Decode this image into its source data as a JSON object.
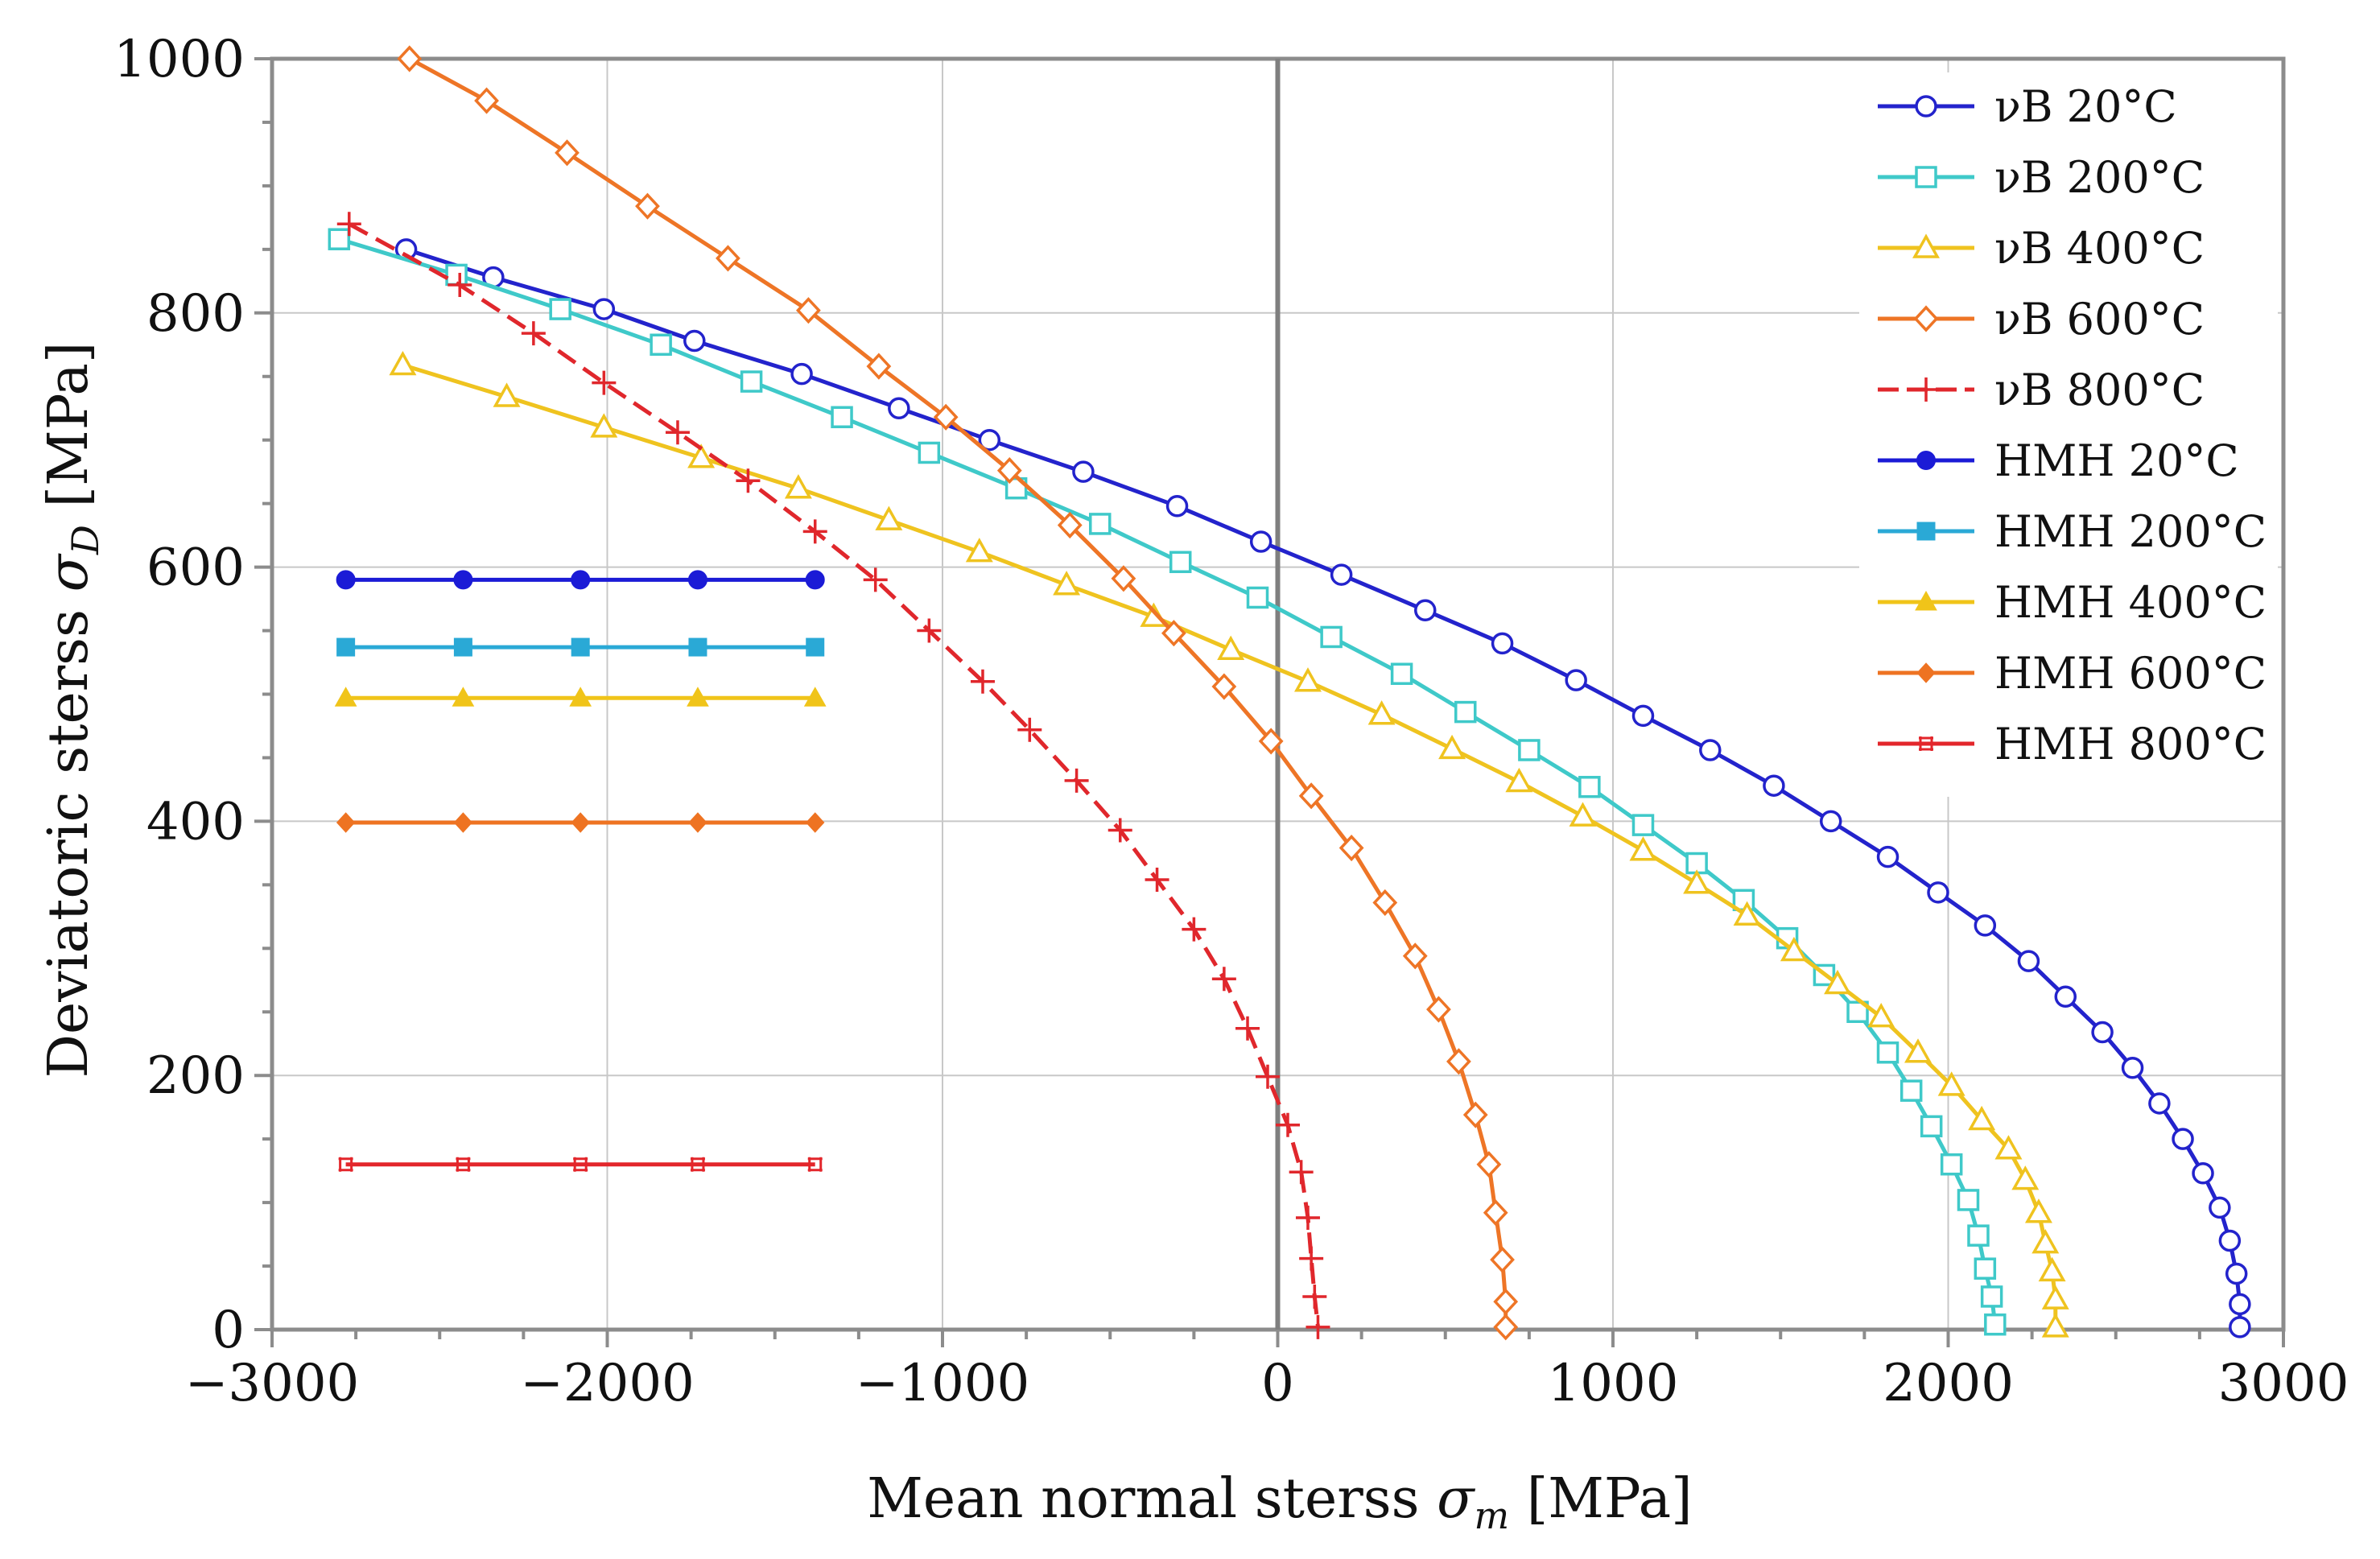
{
  "chart_data": {
    "type": "line",
    "title": "",
    "xlabel": {
      "prefix": "Mean normal sterss ",
      "symbol": "σ",
      "subscript": "m",
      "suffix": " [MPa]"
    },
    "ylabel": {
      "prefix": "Deviatoric sterss ",
      "symbol": "σ",
      "subscript": "D",
      "suffix": " [MPa]"
    },
    "xlim": [
      -3000,
      3000
    ],
    "ylim": [
      0,
      1000
    ],
    "x_ticks": [
      -3000,
      -2000,
      -1000,
      0,
      1000,
      2000,
      3000
    ],
    "x_tick_labels": [
      "−3000",
      "−2000",
      "−1000",
      "0",
      "1000",
      "2000",
      "3000"
    ],
    "y_ticks": [
      0,
      200,
      400,
      600,
      800,
      1000
    ],
    "y_tick_labels": [
      "0",
      "200",
      "400",
      "600",
      "800",
      "1000"
    ],
    "grid": true,
    "legend_position": "top-right",
    "series": [
      {
        "name": "νB 20°C",
        "color": "#2323cc",
        "marker": "open-circle",
        "dashed": false,
        "points": [
          [
            -2600,
            850
          ],
          [
            -2340,
            828
          ],
          [
            -2010,
            803
          ],
          [
            -1740,
            778
          ],
          [
            -1420,
            752
          ],
          [
            -1130,
            725
          ],
          [
            -860,
            700
          ],
          [
            -580,
            675
          ],
          [
            -300,
            648
          ],
          [
            -50,
            620
          ],
          [
            190,
            594
          ],
          [
            440,
            566
          ],
          [
            670,
            540
          ],
          [
            890,
            511
          ],
          [
            1090,
            483
          ],
          [
            1290,
            456
          ],
          [
            1480,
            428
          ],
          [
            1650,
            400
          ],
          [
            1820,
            372
          ],
          [
            1970,
            344
          ],
          [
            2110,
            318
          ],
          [
            2240,
            290
          ],
          [
            2350,
            262
          ],
          [
            2460,
            234
          ],
          [
            2550,
            206
          ],
          [
            2630,
            178
          ],
          [
            2700,
            150
          ],
          [
            2760,
            123
          ],
          [
            2810,
            96
          ],
          [
            2840,
            70
          ],
          [
            2860,
            44
          ],
          [
            2870,
            20
          ],
          [
            2870,
            2
          ]
        ]
      },
      {
        "name": "νB 200°C",
        "color": "#3fc9c9",
        "marker": "open-square",
        "dashed": false,
        "points": [
          [
            -2800,
            858
          ],
          [
            -2450,
            830
          ],
          [
            -2140,
            803
          ],
          [
            -1840,
            775
          ],
          [
            -1570,
            746
          ],
          [
            -1300,
            718
          ],
          [
            -1040,
            690
          ],
          [
            -780,
            662
          ],
          [
            -530,
            634
          ],
          [
            -290,
            604
          ],
          [
            -60,
            576
          ],
          [
            160,
            545
          ],
          [
            370,
            516
          ],
          [
            560,
            486
          ],
          [
            750,
            456
          ],
          [
            930,
            427
          ],
          [
            1090,
            397
          ],
          [
            1250,
            367
          ],
          [
            1390,
            338
          ],
          [
            1520,
            308
          ],
          [
            1630,
            279
          ],
          [
            1730,
            250
          ],
          [
            1820,
            218
          ],
          [
            1890,
            188
          ],
          [
            1950,
            160
          ],
          [
            2010,
            130
          ],
          [
            2060,
            102
          ],
          [
            2090,
            74
          ],
          [
            2110,
            48
          ],
          [
            2130,
            26
          ],
          [
            2140,
            4
          ]
        ]
      },
      {
        "name": "νB 400°C",
        "color": "#efc31f",
        "marker": "open-triangle",
        "dashed": false,
        "points": [
          [
            -2610,
            759
          ],
          [
            -2300,
            734
          ],
          [
            -2010,
            710
          ],
          [
            -1720,
            686
          ],
          [
            -1430,
            662
          ],
          [
            -1160,
            637
          ],
          [
            -890,
            612
          ],
          [
            -630,
            586
          ],
          [
            -370,
            561
          ],
          [
            -140,
            535
          ],
          [
            90,
            510
          ],
          [
            310,
            484
          ],
          [
            520,
            457
          ],
          [
            720,
            431
          ],
          [
            910,
            404
          ],
          [
            1090,
            377
          ],
          [
            1250,
            351
          ],
          [
            1400,
            326
          ],
          [
            1540,
            298
          ],
          [
            1670,
            272
          ],
          [
            1800,
            246
          ],
          [
            1910,
            218
          ],
          [
            2010,
            192
          ],
          [
            2100,
            165
          ],
          [
            2180,
            142
          ],
          [
            2230,
            118
          ],
          [
            2270,
            92
          ],
          [
            2290,
            68
          ],
          [
            2310,
            46
          ],
          [
            2320,
            24
          ],
          [
            2320,
            2
          ]
        ]
      },
      {
        "name": "νB 600°C",
        "color": "#ee7526",
        "marker": "open-diamond",
        "dashed": false,
        "points": [
          [
            -2590,
            1000
          ],
          [
            -2360,
            967
          ],
          [
            -2120,
            926
          ],
          [
            -1880,
            884
          ],
          [
            -1640,
            843
          ],
          [
            -1400,
            802
          ],
          [
            -1190,
            758
          ],
          [
            -990,
            718
          ],
          [
            -800,
            676
          ],
          [
            -620,
            633
          ],
          [
            -460,
            591
          ],
          [
            -310,
            548
          ],
          [
            -160,
            506
          ],
          [
            -20,
            463
          ],
          [
            100,
            420
          ],
          [
            220,
            379
          ],
          [
            320,
            336
          ],
          [
            410,
            294
          ],
          [
            480,
            252
          ],
          [
            540,
            211
          ],
          [
            590,
            169
          ],
          [
            630,
            130
          ],
          [
            650,
            92
          ],
          [
            670,
            55
          ],
          [
            680,
            22
          ],
          [
            680,
            2
          ]
        ]
      },
      {
        "name": "νB 800°C",
        "color": "#e0272c",
        "marker": "plus",
        "dashed": true,
        "points": [
          [
            -2770,
            870
          ],
          [
            -2440,
            822
          ],
          [
            -2220,
            784
          ],
          [
            -2010,
            745
          ],
          [
            -1790,
            706
          ],
          [
            -1580,
            668
          ],
          [
            -1380,
            628
          ],
          [
            -1200,
            590
          ],
          [
            -1040,
            550
          ],
          [
            -880,
            510
          ],
          [
            -740,
            472
          ],
          [
            -600,
            432
          ],
          [
            -470,
            393
          ],
          [
            -360,
            354
          ],
          [
            -250,
            315
          ],
          [
            -160,
            276
          ],
          [
            -90,
            237
          ],
          [
            -30,
            199
          ],
          [
            30,
            161
          ],
          [
            70,
            124
          ],
          [
            90,
            88
          ],
          [
            100,
            56
          ],
          [
            110,
            26
          ],
          [
            120,
            2
          ]
        ]
      },
      {
        "name": "HMH 20°C",
        "color": "#1b1bd6",
        "marker": "filled-circle",
        "dashed": false,
        "points": [
          [
            -2780,
            590
          ],
          [
            -2430,
            590
          ],
          [
            -2080,
            590
          ],
          [
            -1730,
            590
          ],
          [
            -1380,
            590
          ]
        ]
      },
      {
        "name": "HMH 200°C",
        "color": "#2aa9d6",
        "marker": "filled-square",
        "dashed": false,
        "points": [
          [
            -2780,
            537
          ],
          [
            -2430,
            537
          ],
          [
            -2080,
            537
          ],
          [
            -1730,
            537
          ],
          [
            -1380,
            537
          ]
        ]
      },
      {
        "name": "HMH 400°C",
        "color": "#f0c419",
        "marker": "filled-triangle",
        "dashed": false,
        "points": [
          [
            -2780,
            497
          ],
          [
            -2430,
            497
          ],
          [
            -2080,
            497
          ],
          [
            -1730,
            497
          ],
          [
            -1380,
            497
          ]
        ]
      },
      {
        "name": "HMH 600°C",
        "color": "#ee7322",
        "marker": "filled-diamond",
        "dashed": false,
        "points": [
          [
            -2780,
            399
          ],
          [
            -2430,
            399
          ],
          [
            -2080,
            399
          ],
          [
            -1730,
            399
          ],
          [
            -1380,
            399
          ]
        ]
      },
      {
        "name": "HMH 800°C",
        "color": "#e3262b",
        "marker": "small-cross",
        "dashed": false,
        "points": [
          [
            -2780,
            130
          ],
          [
            -2430,
            130
          ],
          [
            -2080,
            130
          ],
          [
            -1730,
            130
          ],
          [
            -1380,
            130
          ]
        ]
      }
    ]
  }
}
